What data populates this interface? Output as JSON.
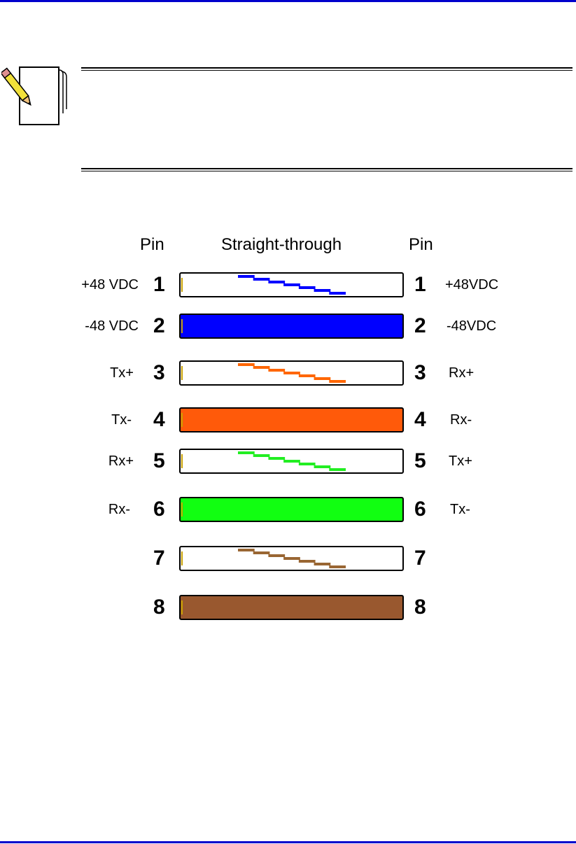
{
  "document": {
    "rule_color": "#0000cc",
    "note_icon": "notepad-pencil-icon"
  },
  "diagram": {
    "header_pin_left": "Pin",
    "header_title": "Straight-through",
    "header_pin_right": "Pin",
    "rows": [
      {
        "pin": "1",
        "left_label": "+48 VDC",
        "right_label": "+48VDC",
        "style": "stripe",
        "color": "#0000ff"
      },
      {
        "pin": "2",
        "left_label": "-48 VDC",
        "right_label": "-48VDC",
        "style": "solid",
        "color": "#0000ff"
      },
      {
        "pin": "3",
        "left_label": "Tx+",
        "right_label": "Rx+",
        "style": "stripe",
        "color": "#ff6600"
      },
      {
        "pin": "4",
        "left_label": "Tx-",
        "right_label": "Rx-",
        "style": "solid",
        "color": "#ff5a0a"
      },
      {
        "pin": "5",
        "left_label": "Rx+",
        "right_label": "Tx+",
        "style": "stripe",
        "color": "#22ee22"
      },
      {
        "pin": "6",
        "left_label": "Rx-",
        "right_label": "Tx-",
        "style": "solid",
        "color": "#11ff11"
      },
      {
        "pin": "7",
        "left_label": "",
        "right_label": "",
        "style": "stripe",
        "color": "#996633"
      },
      {
        "pin": "8",
        "left_label": "",
        "right_label": "",
        "style": "solid",
        "color": "#99582f"
      }
    ]
  }
}
